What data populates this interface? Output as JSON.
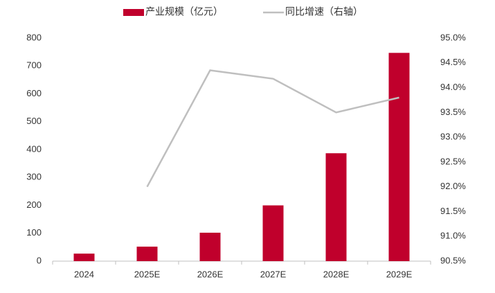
{
  "chart_data": {
    "type": "bar",
    "categories": [
      "2024",
      "2025E",
      "2026E",
      "2027E",
      "2028E",
      "2029E"
    ],
    "series": [
      {
        "name": "产业规模（亿元）",
        "type": "bar",
        "color": "#c0002c",
        "values": [
          27,
          52,
          102,
          200,
          387,
          747
        ]
      },
      {
        "name": "同比增速（右轴）",
        "type": "line",
        "axis": "y2",
        "color": "#bfbfbf",
        "values": [
          null,
          92.0,
          94.35,
          94.18,
          93.5,
          93.8
        ]
      }
    ],
    "ylim": [
      0,
      800
    ],
    "yticks": [
      0,
      100,
      200,
      300,
      400,
      500,
      600,
      700,
      800
    ],
    "y2lim": [
      90.5,
      95.0
    ],
    "y2ticks": [
      {
        "value": 90.5,
        "label": "90.5%"
      },
      {
        "value": 91.0,
        "label": "91.0%"
      },
      {
        "value": 91.5,
        "label": "91.5%"
      },
      {
        "value": 92.0,
        "label": "92.0%"
      },
      {
        "value": 92.5,
        "label": "92.5%"
      },
      {
        "value": 93.0,
        "label": "93.0%"
      },
      {
        "value": 93.5,
        "label": "93.5%"
      },
      {
        "value": 94.0,
        "label": "94.0%"
      },
      {
        "value": 94.5,
        "label": "94.5%"
      },
      {
        "value": 95.0,
        "label": "95.0%"
      }
    ],
    "grid": false
  }
}
